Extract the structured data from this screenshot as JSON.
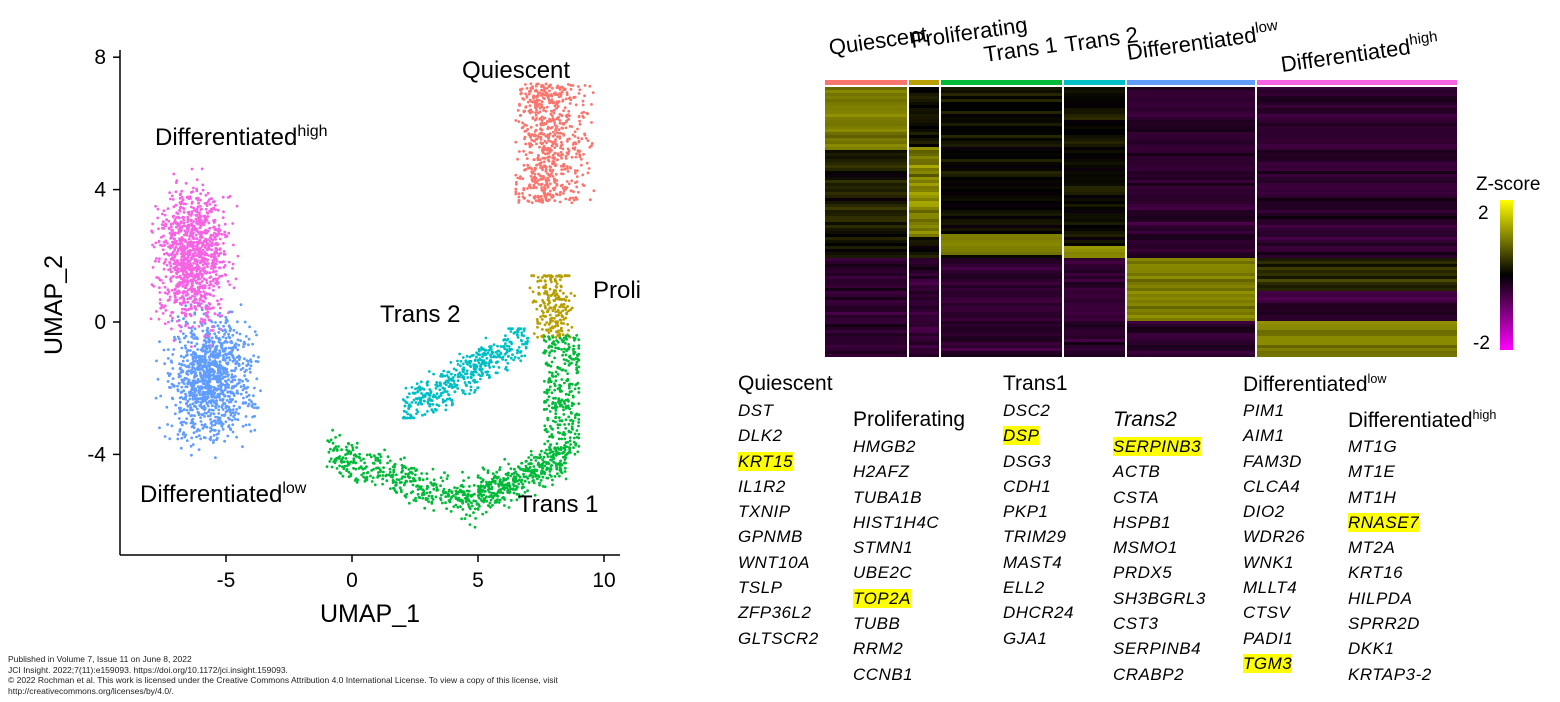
{
  "chart_data": [
    {
      "type": "scatter",
      "xlabel": "UMAP_1",
      "ylabel": "UMAP_2",
      "xlim": [
        -9.2,
        10.5
      ],
      "ylim": [
        -7.05,
        8.1
      ],
      "xticks": [
        "-5",
        "0",
        "5",
        "10"
      ],
      "xtick_values": [
        -5,
        0,
        5,
        10
      ],
      "yticks": [
        "8",
        "4",
        "0",
        "-4"
      ],
      "ytick_values": [
        8,
        4,
        0,
        -4
      ],
      "grid": false,
      "clusters": [
        {
          "label": "Quiescent",
          "sup": "",
          "color": "#F8766D",
          "x_range": [
            6.5,
            9.6
          ],
          "y_range": [
            3,
            7.4
          ]
        },
        {
          "label": "Proliferating",
          "sup": "",
          "color": "#B79F00",
          "x_range": [
            6.8,
            9.2
          ],
          "y_range": [
            -0.7,
            1.4
          ]
        },
        {
          "label": "Trans 1",
          "sup": "",
          "color": "#00BA38",
          "x_range": [
            -1,
            9
          ],
          "y_range": [
            -6.2,
            -0.3
          ]
        },
        {
          "label": "Trans 2",
          "sup": "",
          "color": "#00BFC4",
          "x_range": [
            2,
            7
          ],
          "y_range": [
            -2.9,
            -0.2
          ]
        },
        {
          "label": "Differentiated",
          "sup": "low",
          "color": "#619CFF",
          "x_range": [
            -8,
            -2
          ],
          "y_range": [
            -4.5,
            1.2
          ]
        },
        {
          "label": "Differentiated",
          "sup": "high",
          "color": "#F564E3",
          "x_range": [
            -8,
            -4.3
          ],
          "y_range": [
            -0.8,
            4.8
          ]
        }
      ]
    },
    {
      "type": "heatmap",
      "legend_title": "Z-score",
      "legend_ticks": [
        "2",
        "-2"
      ],
      "scale_range": [
        -2,
        2
      ],
      "colors": {
        "low": "#FF00FF",
        "mid": "#000000",
        "high": "#FFFF00"
      },
      "columns": [
        {
          "label": "Quiescent",
          "sup": "",
          "color": "#F8766D"
        },
        {
          "label": "Proliferating",
          "sup": "",
          "color": "#B79F00"
        },
        {
          "label": "Trans 1",
          "sup": "",
          "color": "#00BA38"
        },
        {
          "label": "Trans 2",
          "sup": "",
          "color": "#00BFC4"
        },
        {
          "label": "Differentiated",
          "sup": "low",
          "color": "#619CFF"
        },
        {
          "label": "Differentiated",
          "sup": "high",
          "color": "#F564E3"
        }
      ]
    }
  ],
  "gene_lists": [
    {
      "title": "Quiescent",
      "sup": "",
      "genes": [
        "DST",
        "DLK2",
        "KRT15",
        "IL1R2",
        "TXNIP",
        "GPNMB",
        "WNT10A",
        "TSLP",
        "ZFP36L2",
        "GLTSCR2"
      ],
      "highlight": [
        "KRT15"
      ]
    },
    {
      "title": "Proliferating",
      "sup": "",
      "genes": [
        "HMGB2",
        "H2AFZ",
        "TUBA1B",
        "HIST1H4C",
        "STMN1",
        "UBE2C",
        "TOP2A",
        "TUBB",
        "RRM2",
        "CCNB1"
      ],
      "highlight": [
        "TOP2A"
      ]
    },
    {
      "title": "Trans1",
      "sup": "",
      "genes": [
        "DSC2",
        "DSP",
        "DSG3",
        "CDH1",
        "PKP1",
        "TRIM29",
        "MAST4",
        "ELL2",
        "DHCR24",
        "GJA1"
      ],
      "highlight": [
        "DSP"
      ]
    },
    {
      "title": "Trans2",
      "sup": "",
      "genes": [
        "SERPINB3",
        "ACTB",
        "CSTA",
        "HSPB1",
        "MSMO1",
        "PRDX5",
        "SH3BGRL3",
        "CST3",
        "SERPINB4",
        "CRABP2"
      ],
      "highlight": [
        "SERPINB3"
      ]
    },
    {
      "title": "Differentiated",
      "sup": "low",
      "genes": [
        "PIM1",
        "AIM1",
        "FAM3D",
        "CLCA4",
        "DIO2",
        "WDR26",
        "WNK1",
        "MLLT4",
        "CTSV",
        "PADI1",
        "TGM3"
      ],
      "highlight": [
        "TGM3"
      ]
    },
    {
      "title": "Differentiated",
      "sup": "high",
      "genes": [
        "MT1G",
        "MT1E",
        "MT1H",
        "RNASE7",
        "MT2A",
        "KRT16",
        "HILPDA",
        "SPRR2D",
        "DKK1",
        "KRTAP3-2"
      ],
      "highlight": [
        "RNASE7"
      ]
    }
  ],
  "footer": {
    "line1": "Published in Volume 7, Issue 11 on June 8, 2022",
    "line2": "JCI Insight. 2022;7(11):e159093. https://doi.org/10.1172/jci.insight.159093.",
    "line3": "© 2022 Rochman et al. This work is licensed under the Creative Commons Attribution 4.0 International License. To view a copy of this license, visit",
    "line4": "http://creativecommons.org/licenses/by/4.0/."
  }
}
